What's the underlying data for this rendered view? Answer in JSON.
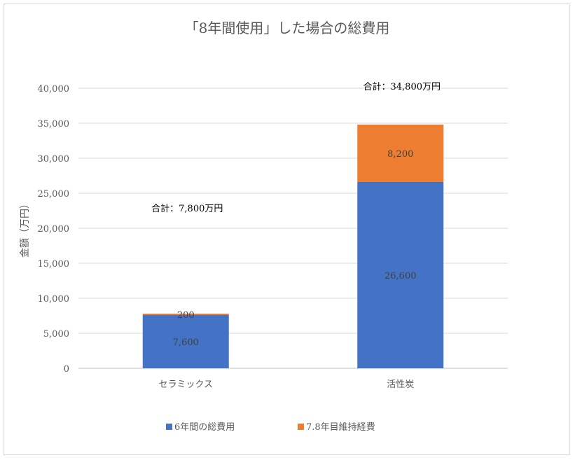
{
  "chart_data": {
    "type": "bar",
    "stacked": true,
    "title": "「8年間使用」した場合の総費用",
    "ylabel": "金額（万円）",
    "xlabel": "",
    "categories": [
      "セラミックス",
      "活性炭"
    ],
    "series": [
      {
        "name": "6年間の総費用",
        "color": "#4472c4",
        "values": [
          7600,
          26600
        ],
        "labels": [
          "7,600",
          "26,600"
        ]
      },
      {
        "name": "7.8年目維持経費",
        "color": "#ed7d31",
        "values": [
          200,
          8200
        ],
        "labels": [
          "200",
          "8,200"
        ]
      }
    ],
    "totals": [
      "合計：7,800万円",
      "合計：34,800万円"
    ],
    "ylim": [
      0,
      40000
    ],
    "yticks": [
      0,
      5000,
      10000,
      15000,
      20000,
      25000,
      30000,
      35000,
      40000
    ],
    "ytick_labels": [
      "0",
      "5,000",
      "10,000",
      "15,000",
      "20,000",
      "25,000",
      "30,000",
      "35,000",
      "40,000"
    ],
    "grid": true,
    "legend_position": "bottom"
  }
}
